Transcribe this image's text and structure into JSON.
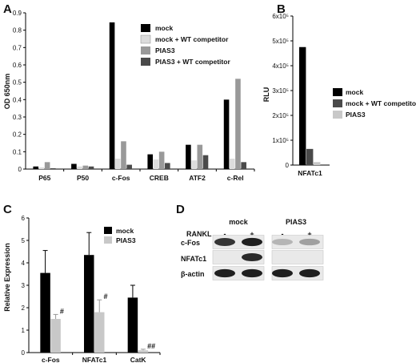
{
  "colors": {
    "mock": "#000000",
    "mock_wt": "#dcdcdc",
    "pias3": "#999999",
    "pias3_wt": "#4a4a4a",
    "light": "#c8c8c8",
    "axis": "#000000"
  },
  "chart_data": [
    {
      "panel": "A",
      "type": "bar",
      "ylabel": "OD 650nm",
      "ylim": [
        0,
        0.9
      ],
      "yticks": [
        "0",
        "0.1",
        "0.2",
        "0.3",
        "0.4",
        "0.5",
        "0.6",
        "0.7",
        "0.8",
        "0.9"
      ],
      "categories": [
        "P65",
        "P50",
        "c-Fos",
        "CREB",
        "ATF2",
        "c-Rel"
      ],
      "legend_position": "top-right",
      "series": [
        {
          "name": "mock",
          "color": "#000000",
          "values": [
            0.015,
            0.03,
            0.845,
            0.085,
            0.14,
            0.4
          ]
        },
        {
          "name": "mock + WT competitor",
          "color": "#dcdcdc",
          "values": [
            0.01,
            0.015,
            0.06,
            0.055,
            0.05,
            0.06
          ]
        },
        {
          "name": "PIAS3",
          "color": "#999999",
          "values": [
            0.04,
            0.02,
            0.16,
            0.1,
            0.14,
            0.52
          ]
        },
        {
          "name": "PIAS3 + WT competitor",
          "color": "#4a4a4a",
          "values": [
            0.005,
            0.015,
            0.025,
            0.035,
            0.08,
            0.04
          ]
        }
      ]
    },
    {
      "panel": "B",
      "type": "bar",
      "ylabel": "RLU",
      "ylim": [
        0,
        600000
      ],
      "yticks": [
        "0",
        "1x10⁵",
        "2x10⁵",
        "3x10⁵",
        "4x10⁵",
        "5x10⁵",
        "6x10⁵"
      ],
      "categories": [
        "NFATc1"
      ],
      "legend_position": "right",
      "series": [
        {
          "name": "mock",
          "color": "#000000",
          "values": [
            475000
          ]
        },
        {
          "name": "mock + WT competitor",
          "color": "#4a4a4a",
          "values": [
            65000
          ]
        },
        {
          "name": "PIAS3",
          "color": "#c8c8c8",
          "values": [
            12000
          ]
        }
      ]
    },
    {
      "panel": "C",
      "type": "bar",
      "ylabel": "Relative Expression",
      "ylim": [
        0,
        6
      ],
      "yticks": [
        "0",
        "1",
        "2",
        "3",
        "4",
        "5",
        "6"
      ],
      "categories": [
        "c-Fos",
        "NFATc1",
        "CatK"
      ],
      "legend_position": "top-right",
      "series": [
        {
          "name": "mock",
          "color": "#000000",
          "values": [
            3.55,
            4.35,
            2.45
          ],
          "errors": [
            1.0,
            1.0,
            0.55
          ]
        },
        {
          "name": "PIAS3",
          "color": "#c8c8c8",
          "values": [
            1.5,
            1.8,
            0.1
          ],
          "errors": [
            0.2,
            0.55,
            0.05
          ]
        }
      ],
      "annotations": [
        "#",
        "#",
        "##"
      ]
    }
  ],
  "panels": {
    "a": "A",
    "b": "B",
    "c": "C",
    "d": "D"
  },
  "blot": {
    "condition_label": "RANKL",
    "groups": [
      "mock",
      "PIAS3"
    ],
    "lane_signs": [
      "-",
      "+",
      "-",
      "+"
    ],
    "rows": [
      {
        "label": "c-Fos",
        "intensities": [
          0.85,
          0.95,
          0.25,
          0.35
        ]
      },
      {
        "label": "NFATc1",
        "intensities": [
          0.0,
          0.9,
          0.0,
          0.0
        ]
      },
      {
        "label": "β-actin",
        "intensities": [
          0.95,
          0.95,
          0.95,
          0.95
        ]
      }
    ]
  }
}
